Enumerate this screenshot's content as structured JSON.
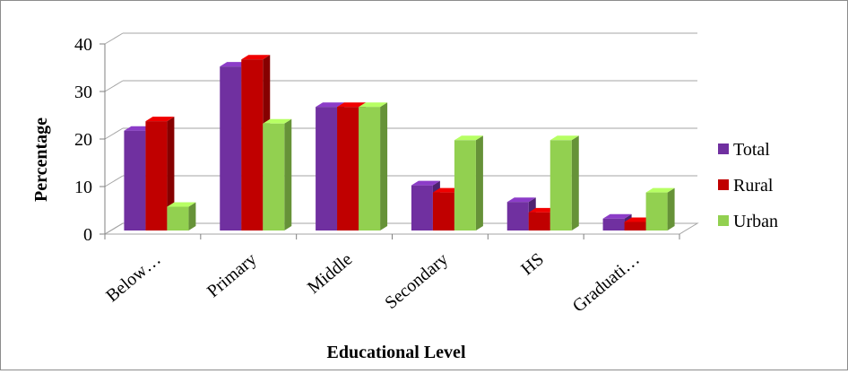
{
  "chart_data": {
    "type": "bar",
    "title": "",
    "xlabel": "Educational Level",
    "ylabel": "Percentage",
    "ylim": [
      0,
      40
    ],
    "yticks": [
      0,
      10,
      20,
      30,
      40
    ],
    "grid": true,
    "legend_position": "right",
    "categories": [
      "Below…",
      "Primary",
      "Middle",
      "Secondary",
      "HS",
      "Graduati…"
    ],
    "series": [
      {
        "name": "Total",
        "color": "#7030a0",
        "values": [
          21,
          34.5,
          26,
          9.5,
          6,
          2.5
        ]
      },
      {
        "name": "Rural",
        "color": "#c00000",
        "values": [
          23,
          36,
          26,
          8,
          3.8,
          1.8
        ]
      },
      {
        "name": "Urban",
        "color": "#92d050",
        "values": [
          5,
          22.5,
          26,
          19,
          19,
          8
        ]
      }
    ]
  }
}
